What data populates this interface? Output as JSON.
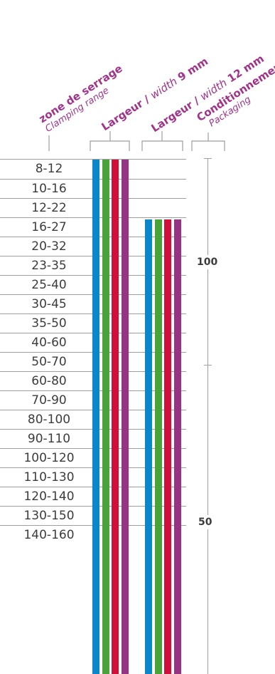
{
  "headers": {
    "zone": {
      "line1": "zone de serrage",
      "line2": "Clamping range"
    },
    "w9": {
      "bold": "Largeur / ",
      "italic": "width ",
      "num": "9 mm"
    },
    "w12": {
      "bold": "Largeur / ",
      "italic": "width ",
      "num": "12 mm"
    },
    "pack": {
      "line1": "Conditionnement",
      "line2": "Packaging"
    }
  },
  "rows": [
    "8-12",
    "10-16",
    "12-22",
    "16-27",
    "20-32",
    "23-35",
    "25-40",
    "30-45",
    "35-50",
    "40-60",
    "50-70",
    "60-80",
    "70-90",
    "80-100",
    "90-110",
    "100-120",
    "110-130",
    "120-140",
    "130-150",
    "140-160"
  ],
  "colors": {
    "blue": "#0a87c9",
    "green": "#4aa23b",
    "red": "#d0103a",
    "purple": "#973384",
    "header": "#a2338b",
    "text": "#3c3c3c",
    "rule": "#9e9e9e"
  },
  "packaging": {
    "upper": "100",
    "lower": "50"
  },
  "coverage": {
    "width_9mm_from_row": "8-12",
    "width_12mm_from_row": "16-27"
  }
}
